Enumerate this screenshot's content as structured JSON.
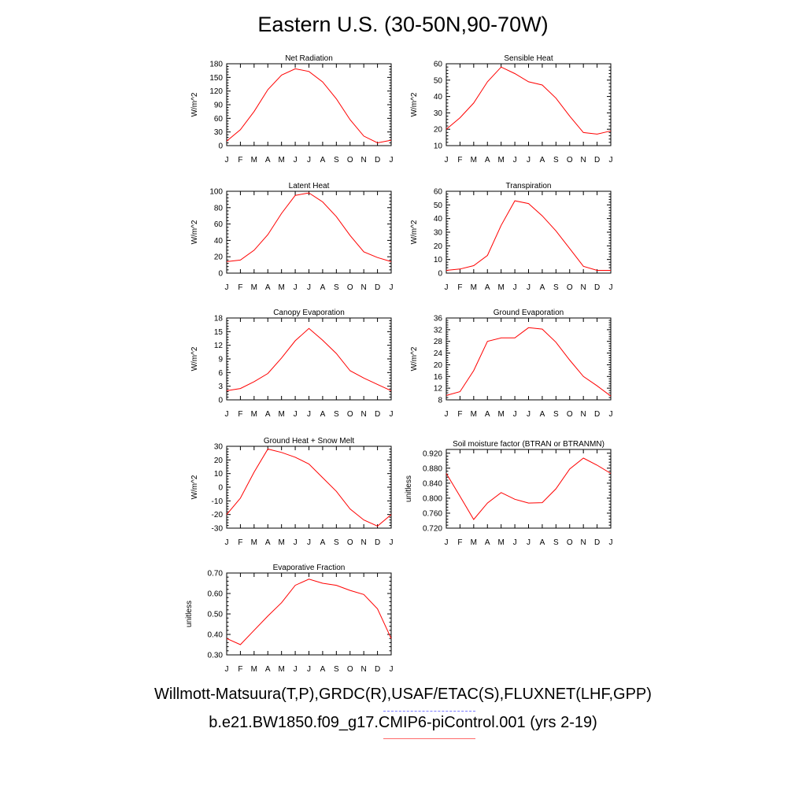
{
  "title": "Eastern U.S. (30-50N,90-70W)",
  "footer": {
    "obs": "Willmott-Matsuura(T,P),GRDC(R),USAF/ETAC(S),FLUXNET(LHF,GPP)",
    "model": "b.e21.BW1850.f09_g17.CMIP6-piControl.001 (yrs 2-19)"
  },
  "colors": {
    "model_line": "#ff0000",
    "obs_line": "#7a7aff",
    "axis": "#000000"
  },
  "chart_data": [
    {
      "type": "line",
      "title": "Net Radiation",
      "ylabel": "W/m^2",
      "categories": [
        "J",
        "F",
        "M",
        "A",
        "M",
        "J",
        "J",
        "A",
        "S",
        "O",
        "N",
        "D",
        "J"
      ],
      "ylim": [
        0,
        180
      ],
      "yticks": [
        "0",
        "30",
        "60",
        "90",
        "120",
        "150",
        "180"
      ],
      "series": [
        {
          "name": "model",
          "values": [
            10,
            35,
            75,
            123,
            155,
            169,
            163,
            140,
            103,
            57,
            21,
            6,
            12
          ]
        }
      ]
    },
    {
      "type": "line",
      "title": "Sensible Heat",
      "ylabel": "W/m^2",
      "categories": [
        "J",
        "F",
        "M",
        "A",
        "M",
        "J",
        "J",
        "A",
        "S",
        "O",
        "N",
        "D",
        "J"
      ],
      "ylim": [
        10,
        60
      ],
      "yticks": [
        "10",
        "20",
        "30",
        "40",
        "50",
        "60"
      ],
      "series": [
        {
          "name": "model",
          "values": [
            20,
            27,
            36,
            49,
            58,
            54,
            49,
            47,
            39,
            28,
            18,
            17,
            19
          ]
        }
      ]
    },
    {
      "type": "line",
      "title": "Latent Heat",
      "ylabel": "W/m^2",
      "categories": [
        "J",
        "F",
        "M",
        "A",
        "M",
        "J",
        "J",
        "A",
        "S",
        "O",
        "N",
        "D",
        "J"
      ],
      "ylim": [
        0,
        100
      ],
      "yticks": [
        "0",
        "20",
        "40",
        "60",
        "80",
        "100"
      ],
      "series": [
        {
          "name": "model",
          "values": [
            14,
            16,
            28,
            47,
            73,
            95,
            98,
            87,
            69,
            46,
            26,
            19,
            14
          ]
        }
      ]
    },
    {
      "type": "line",
      "title": "Transpiration",
      "ylabel": "W/m^2",
      "categories": [
        "J",
        "F",
        "M",
        "A",
        "M",
        "J",
        "J",
        "A",
        "S",
        "O",
        "N",
        "D",
        "J"
      ],
      "ylim": [
        0,
        60
      ],
      "yticks": [
        "0",
        "10",
        "20",
        "30",
        "40",
        "50",
        "60"
      ],
      "series": [
        {
          "name": "model",
          "values": [
            2,
            3,
            5.5,
            13,
            35,
            53,
            51,
            42,
            31,
            18,
            5,
            2,
            2
          ]
        }
      ]
    },
    {
      "type": "line",
      "title": "Canopy Evaporation",
      "ylabel": "W/m^2",
      "categories": [
        "J",
        "F",
        "M",
        "A",
        "M",
        "J",
        "J",
        "A",
        "S",
        "O",
        "N",
        "D",
        "J"
      ],
      "ylim": [
        0,
        18
      ],
      "yticks": [
        "0",
        "3",
        "6",
        "9",
        "12",
        "15",
        "18"
      ],
      "series": [
        {
          "name": "model",
          "values": [
            2,
            2.5,
            4,
            5.8,
            9.2,
            13,
            15.7,
            13.1,
            10.2,
            6.4,
            4.8,
            3.4,
            2
          ]
        }
      ]
    },
    {
      "type": "line",
      "title": "Ground Evaporation",
      "ylabel": "W/m^2",
      "categories": [
        "J",
        "F",
        "M",
        "A",
        "M",
        "J",
        "J",
        "A",
        "S",
        "O",
        "N",
        "D",
        "J"
      ],
      "ylim": [
        8,
        36
      ],
      "yticks": [
        "8",
        "12",
        "16",
        "20",
        "24",
        "28",
        "32",
        "36"
      ],
      "series": [
        {
          "name": "model",
          "values": [
            9.5,
            10.8,
            18,
            28,
            29.2,
            29.2,
            32.7,
            32.2,
            27.7,
            21.6,
            16,
            12.8,
            9.3
          ]
        }
      ]
    },
    {
      "type": "line",
      "title": "Ground Heat + Snow Melt",
      "ylabel": "W/m^2",
      "categories": [
        "J",
        "F",
        "M",
        "A",
        "M",
        "J",
        "J",
        "A",
        "S",
        "O",
        "N",
        "D",
        "J"
      ],
      "ylim": [
        -30,
        30
      ],
      "yticks": [
        "-30",
        "-20",
        "-10",
        "0",
        "10",
        "20",
        "30"
      ],
      "series": [
        {
          "name": "model",
          "values": [
            -20,
            -8,
            11,
            28,
            25.5,
            22,
            17,
            7,
            -3,
            -16,
            -24,
            -28.5,
            -20
          ]
        }
      ]
    },
    {
      "type": "line",
      "title": "Soil moisture factor (BTRAN or BTRANMN)",
      "ylabel": "unitless",
      "categories": [
        "J",
        "F",
        "M",
        "A",
        "M",
        "J",
        "J",
        "A",
        "S",
        "O",
        "N",
        "D",
        "J"
      ],
      "ylim": [
        0.72,
        0.93
      ],
      "yticks": [
        "0.720",
        "0.760",
        "0.800",
        "0.840",
        "0.880",
        "0.920"
      ],
      "series": [
        {
          "name": "model",
          "values": [
            0.866,
            0.805,
            0.743,
            0.787,
            0.815,
            0.797,
            0.787,
            0.788,
            0.825,
            0.878,
            0.907,
            0.888,
            0.866
          ]
        }
      ]
    },
    {
      "type": "line",
      "title": "Evaporative Fraction",
      "ylabel": "unitless",
      "categories": [
        "J",
        "F",
        "M",
        "A",
        "M",
        "J",
        "J",
        "A",
        "S",
        "O",
        "N",
        "D",
        "J"
      ],
      "ylim": [
        0.3,
        0.7
      ],
      "yticks": [
        "0.30",
        "0.40",
        "0.50",
        "0.60",
        "0.70"
      ],
      "series": [
        {
          "name": "model",
          "values": [
            0.38,
            0.35,
            0.42,
            0.49,
            0.555,
            0.64,
            0.67,
            0.65,
            0.64,
            0.615,
            0.595,
            0.525,
            0.38
          ]
        }
      ]
    }
  ]
}
